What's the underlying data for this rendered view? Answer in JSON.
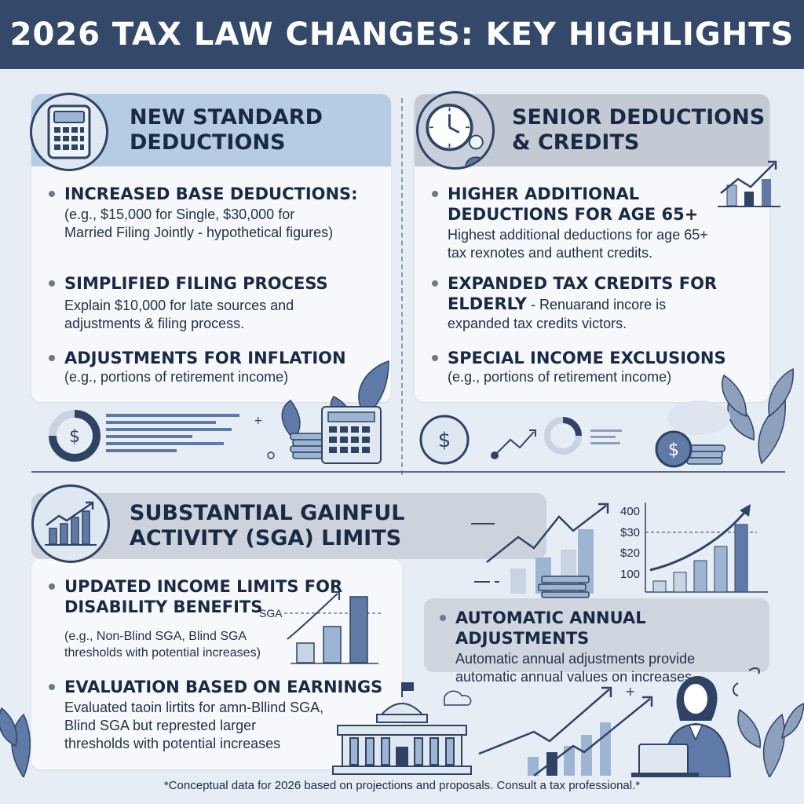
{
  "header": {
    "title": "2026 TAX LAW CHANGES: KEY HIGHLIGHTS"
  },
  "sections": {
    "standard": {
      "title_line1": "NEW STANDARD",
      "title_line2": "DEDUCTIONS",
      "icon": "calculator-icon",
      "items": [
        {
          "title": "INCREASED BASE DEDUCTIONS:",
          "body_line1": "(e.g., $15,000 for Single, $30,000 for",
          "body_line2": "Married Filing Jointly - hypothetical figures)"
        },
        {
          "title": "SIMPLIFIED FILING PROCESS",
          "body_line1": "Explain $10,000 for late sources and",
          "body_line2": "adjustments & filing process."
        },
        {
          "title": "ADJUSTMENTS FOR INFLATION",
          "body_line1": "(e.g., portions of retirement income)"
        }
      ]
    },
    "senior": {
      "title_line1": "SENIOR DEDUCTIONS",
      "title_line2": "& CREDITS",
      "icon": "clock-icon",
      "items": [
        {
          "title_line1": "HIGHER ADDITIONAL",
          "title_line2": "DEDUCTIONS FOR AGE 65+",
          "body_line1": "Highest additional deductions for age 65+",
          "body_line2": "tax rexnotes and authent credits."
        },
        {
          "title_line1": "EXPANDED TAX CREDITS FOR",
          "title_line2": "ELDERLY",
          "inline": " - Renuarand incore is",
          "body_line2": "expanded tax credits victors."
        },
        {
          "title": "SPECIAL INCOME EXCLUSIONS",
          "body_line1": "(e.g., portions of retirement income)"
        }
      ]
    },
    "sga": {
      "title_line1": "SUBSTANTIAL GAINFUL",
      "title_line2": "ACTIVITY (SGA) LIMITS",
      "icon": "growth-chart-icon",
      "items": [
        {
          "title_line1": "UPDATED INCOME LIMITS FOR",
          "title_line2": "DISABILITY BENEFITS",
          "body_line1": "(e.g., Non-Blind SGA, Blind SGA",
          "body_line2": "thresholds with potential increases)"
        },
        {
          "title": "EVALUATION BASED ON EARNINGS",
          "body_line1": "Evaluated taoin lirtits for amn-Bllind SGA,",
          "body_line2": "Blind SGA but represted larger",
          "body_line3": "thresholds with potential increases"
        }
      ],
      "sga_label": "SGA",
      "auto": {
        "title": "AUTOMATIC ANNUAL ADJUSTMENTS",
        "body_line1": "Automatic annual adjustments provide",
        "body_line2": "automatic annual values on increases"
      },
      "axis_ticks": [
        "400",
        "$30",
        "$20",
        "100"
      ]
    }
  },
  "footer": {
    "note": "*Conceptual data for 2026 based on projections and proposals. Consult a tax professional.*"
  },
  "colors": {
    "header": "#34496a",
    "accent": "#5f7aa6",
    "navy": "#2f4465"
  }
}
